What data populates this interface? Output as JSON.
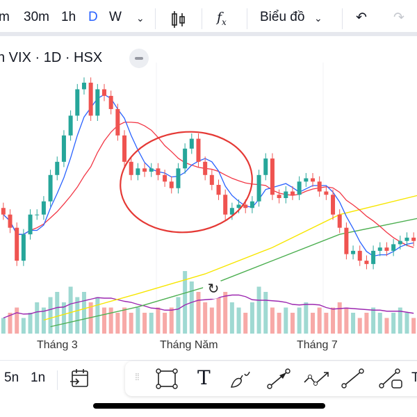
{
  "toolbar": {
    "intervals": [
      "m",
      "30m",
      "1h",
      "D",
      "W"
    ],
    "active_interval": "D",
    "chart_type_label": "Biểu đồ"
  },
  "symbol": {
    "title": "n VIX · 1D · HSX"
  },
  "x_axis": {
    "labels": [
      "Tháng 3",
      "Tháng Năm",
      "Tháng 7"
    ]
  },
  "bottom": {
    "ranges": [
      "5n",
      "1n"
    ],
    "partial_tool": "T"
  },
  "colors": {
    "up": "#26a69a",
    "down": "#ef5350",
    "ma_blue": "#2962ff",
    "ma_red": "#f23645",
    "ma_yellow": "#f7e600",
    "ma_green": "#4caf50",
    "vol_ma": "#9c27b0",
    "active": "#2962ff"
  },
  "chart_data": {
    "type": "candlestick",
    "closes": [
      22,
      20,
      15,
      19,
      22,
      22,
      24,
      28,
      30,
      34,
      37,
      41,
      42,
      37,
      41,
      40,
      38,
      34,
      30,
      28,
      29,
      28.5,
      29,
      28,
      27,
      26,
      29,
      32,
      33.5,
      30,
      28,
      26.5,
      25,
      22,
      23,
      23.5,
      23,
      24,
      28,
      30.5,
      25,
      24.5,
      25.5,
      25,
      27,
      27.5,
      27,
      25.5,
      25,
      22,
      20,
      16,
      16.5,
      15,
      14.5,
      16.5,
      17,
      16.5,
      17.5,
      18,
      18.5,
      18
    ],
    "volumes": [
      3,
      4,
      5,
      3,
      4,
      6,
      5,
      7,
      8,
      6,
      9,
      7,
      8,
      6,
      7,
      5,
      5,
      4,
      5,
      4,
      5,
      4,
      4,
      5,
      4,
      5,
      7,
      12,
      10,
      8,
      6,
      5,
      7,
      8,
      6,
      5,
      4,
      6,
      9,
      8,
      5,
      4,
      5,
      4,
      5,
      6,
      4,
      5,
      4,
      5,
      6,
      5,
      4,
      3,
      4,
      5,
      4,
      3,
      4,
      5,
      4,
      3
    ],
    "ma_yellow": [
      [
        6,
        6
      ],
      [
        20,
        10
      ],
      [
        30,
        13
      ],
      [
        40,
        17
      ],
      [
        50,
        22
      ],
      [
        62,
        25
      ]
    ],
    "ma_green": [
      [
        7,
        5
      ],
      [
        20,
        8
      ],
      [
        30,
        11
      ],
      [
        40,
        15
      ],
      [
        50,
        19
      ],
      [
        62,
        21.5
      ]
    ],
    "price_range": [
      5,
      44
    ]
  }
}
